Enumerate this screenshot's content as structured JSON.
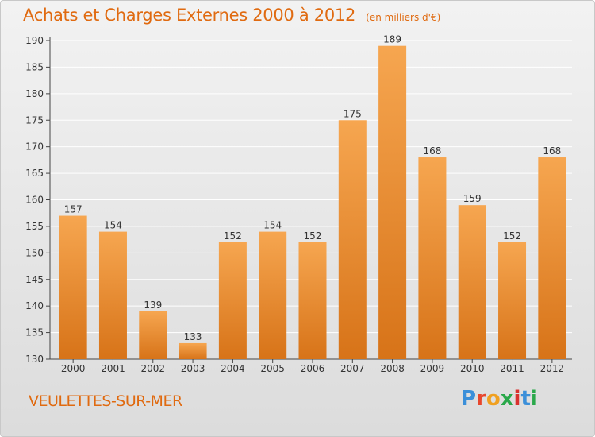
{
  "header": {
    "title": "Achats et Charges Externes 2000 à 2012",
    "subtitle": "(en milliers d'€)"
  },
  "footer": {
    "location": "VEULETTES-SUR-MER",
    "brand": "Proxiti",
    "brand_colors": [
      "#3b8fd9",
      "#e8462c",
      "#f0a020",
      "#2aa84a",
      "#d9322f",
      "#3b8fd9",
      "#2aa84a"
    ]
  },
  "colors": {
    "bar_light": "#f6a650",
    "bar_dark": "#d77318",
    "text": "#e06a10",
    "axis": "#444444",
    "grid": "#ffffff"
  },
  "chart_data": {
    "type": "bar",
    "categories": [
      "2000",
      "2001",
      "2002",
      "2003",
      "2004",
      "2005",
      "2006",
      "2007",
      "2008",
      "2009",
      "2010",
      "2011",
      "2012"
    ],
    "values": [
      157,
      154,
      139,
      133,
      152,
      154,
      152,
      175,
      189,
      168,
      159,
      152,
      168
    ],
    "ylim": [
      130,
      190
    ],
    "yticks": [
      130,
      135,
      140,
      145,
      150,
      155,
      160,
      165,
      170,
      175,
      180,
      185,
      190
    ],
    "grid": true,
    "data_labels": true
  }
}
